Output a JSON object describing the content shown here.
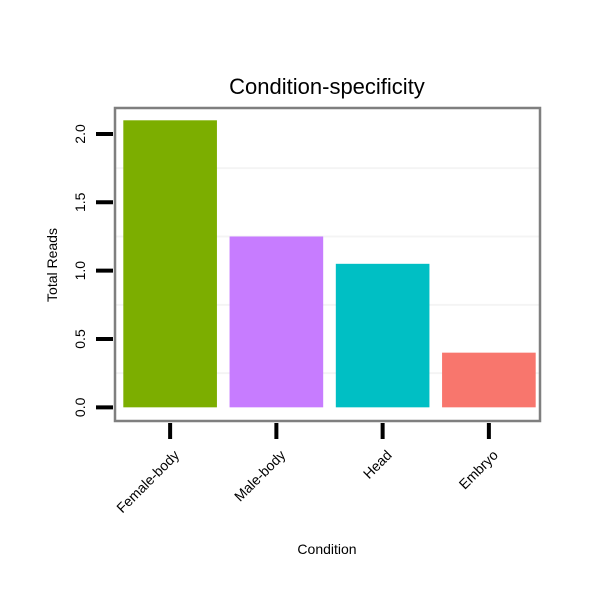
{
  "chart_data": {
    "type": "bar",
    "title": "Condition-specificity",
    "xlabel": "Condition",
    "ylabel": "Total Reads",
    "categories": [
      "Female-body",
      "Male-body",
      "Head",
      "Embryo"
    ],
    "values": [
      2.1,
      1.25,
      1.05,
      0.4
    ],
    "colors": [
      "#7CAE00",
      "#C77CFF",
      "#00BFC4",
      "#F8766D"
    ],
    "ylim": [
      -0.1,
      2.19
    ],
    "yticks": [
      0.0,
      0.5,
      1.0,
      1.5,
      2.0
    ],
    "ytick_labels": [
      "0.0",
      "0.5",
      "1.0",
      "1.5",
      "2.0"
    ],
    "grid": true,
    "legend": "none"
  }
}
